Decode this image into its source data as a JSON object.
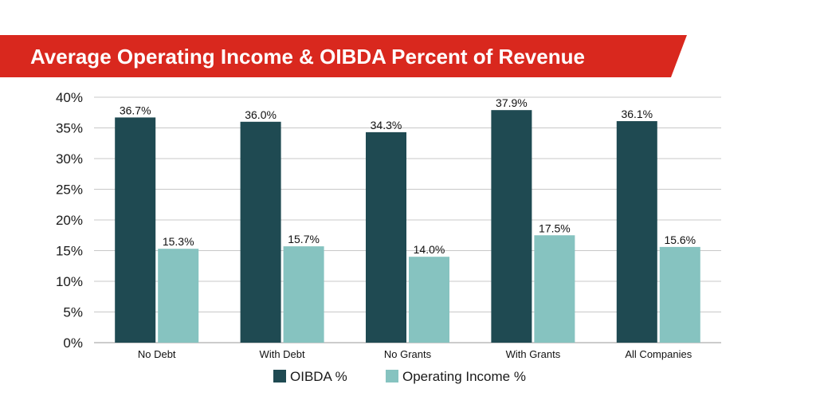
{
  "chart_data": {
    "type": "bar",
    "title": "Average Operating Income & OIBDA Percent of Revenue",
    "categories": [
      "No Debt",
      "With Debt",
      "No Grants",
      "With Grants",
      "All Companies"
    ],
    "series": [
      {
        "name": "OIBDA %",
        "values": [
          36.7,
          36.0,
          34.3,
          37.9,
          36.1
        ],
        "labels": [
          "36.7%",
          "36.0%",
          "34.3%",
          "37.9%",
          "36.1%"
        ],
        "color": "#1f4a52"
      },
      {
        "name": "Operating Income %",
        "values": [
          15.3,
          15.7,
          14.0,
          17.5,
          15.6
        ],
        "labels": [
          "15.3%",
          "15.7%",
          "14.0%",
          "17.5%",
          "15.6%"
        ],
        "color": "#86c3c0"
      }
    ],
    "yticks": [
      "0%",
      "5%",
      "10%",
      "15%",
      "20%",
      "25%",
      "30%",
      "35%",
      "40%"
    ],
    "ylim": [
      0,
      40
    ],
    "grid": true,
    "legend_position": "bottom",
    "title_banner_color": "#d9281e"
  }
}
